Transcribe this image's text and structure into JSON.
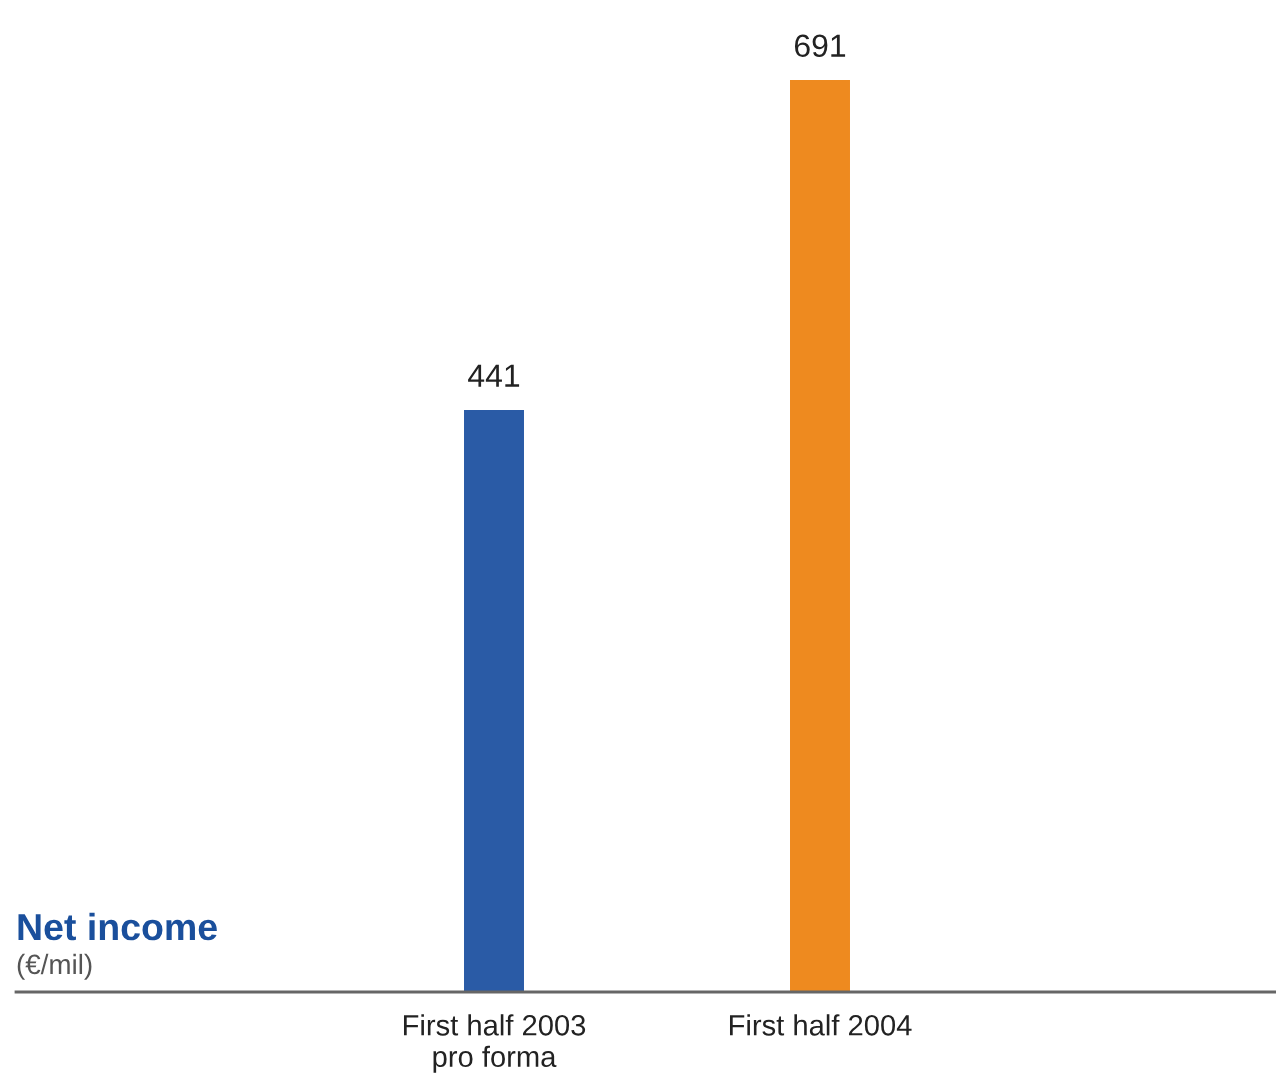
{
  "chart_data": {
    "type": "bar",
    "title": "Net income",
    "subtitle": "(€/mil)",
    "categories": [
      "First half 2003\npro forma",
      "First half 2004"
    ],
    "values": [
      441,
      691
    ],
    "colors": [
      "#2a5ba6",
      "#ee8a1f"
    ],
    "data_labels": true,
    "grid": false,
    "legend": false
  }
}
